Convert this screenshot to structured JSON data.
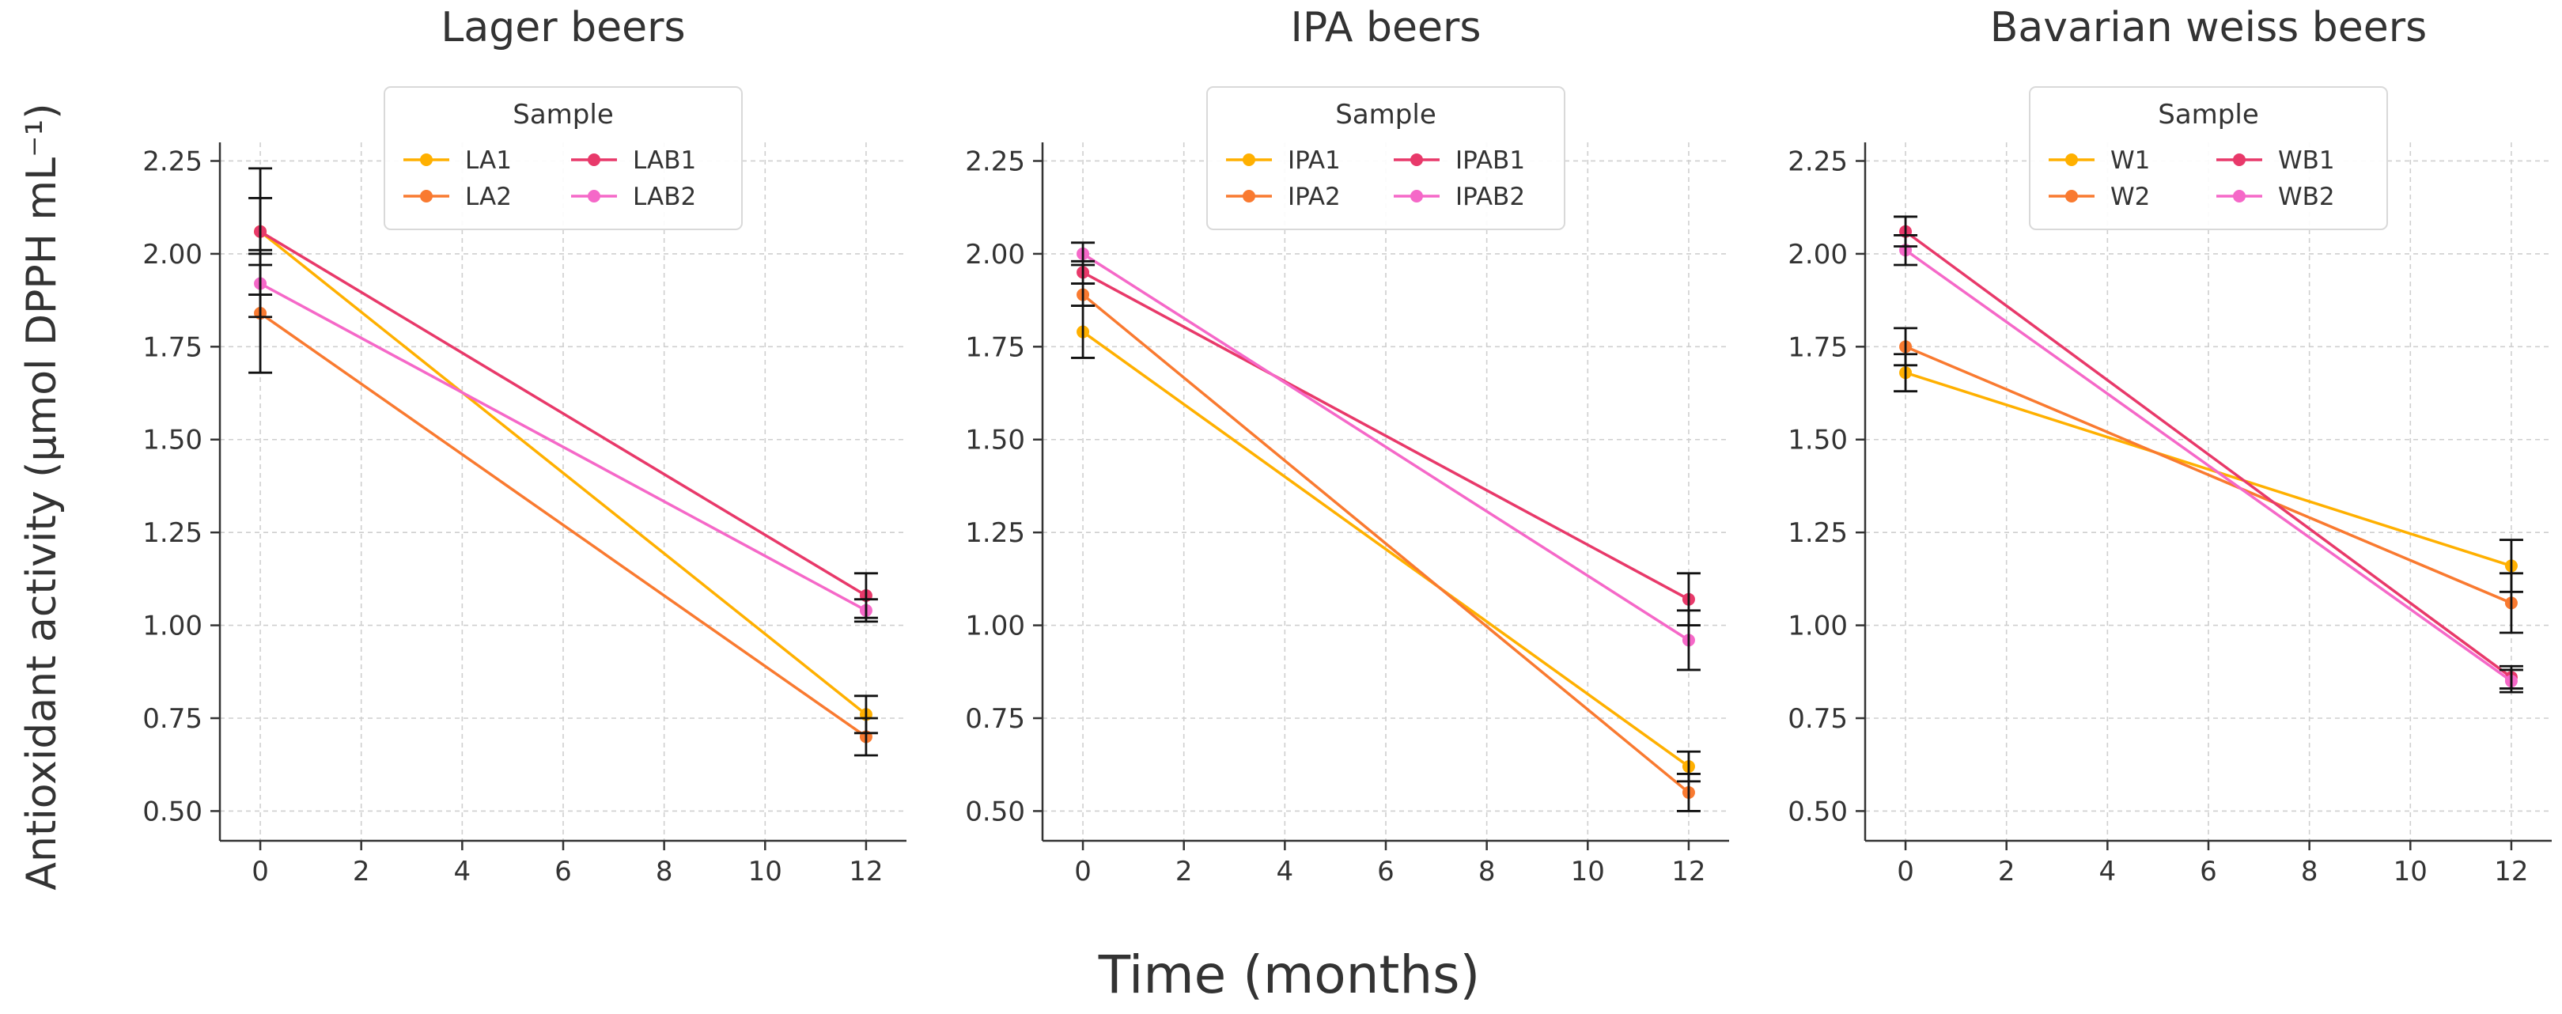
{
  "figure": {
    "ylabel": "Antioxidant activity (µmol DPPH mL⁻¹)",
    "xlabel": "Time (months)"
  },
  "colors": {
    "yellow": "#ffb000",
    "orange": "#f97a30",
    "crimson": "#e8396a",
    "pink": "#f568c8",
    "axis": "#333333",
    "grid": "#cfcfcf",
    "legend_border": "#d9d9d9",
    "errorbar": "#111111"
  },
  "chart_data": [
    {
      "type": "line",
      "title": "Lager beers",
      "legend_title": "Sample",
      "x": [
        0,
        12
      ],
      "xlim": [
        -0.8,
        12.8
      ],
      "ylim": [
        0.42,
        2.3
      ],
      "xticks": [
        "0",
        "2",
        "4",
        "6",
        "8",
        "10",
        "12"
      ],
      "yticks": [
        "0.50",
        "0.75",
        "1.00",
        "1.25",
        "1.50",
        "1.75",
        "2.00",
        "2.25"
      ],
      "grid": true,
      "series": [
        {
          "name": "LA1",
          "color": "yellow",
          "values": [
            2.06,
            0.76
          ],
          "errors": [
            0.09,
            0.05
          ]
        },
        {
          "name": "LA2",
          "color": "orange",
          "values": [
            1.84,
            0.7
          ],
          "errors": [
            0.16,
            0.05
          ]
        },
        {
          "name": "LAB1",
          "color": "crimson",
          "values": [
            2.06,
            1.08
          ],
          "errors": [
            0.17,
            0.06
          ]
        },
        {
          "name": "LAB2",
          "color": "pink",
          "values": [
            1.92,
            1.04
          ],
          "errors": [
            0.09,
            0.03
          ]
        }
      ]
    },
    {
      "type": "line",
      "title": "IPA beers",
      "legend_title": "Sample",
      "x": [
        0,
        12
      ],
      "xlim": [
        -0.8,
        12.8
      ],
      "ylim": [
        0.42,
        2.3
      ],
      "xticks": [
        "0",
        "2",
        "4",
        "6",
        "8",
        "10",
        "12"
      ],
      "yticks": [
        "0.50",
        "0.75",
        "1.00",
        "1.25",
        "1.50",
        "1.75",
        "2.00",
        "2.25"
      ],
      "grid": true,
      "series": [
        {
          "name": "IPA1",
          "color": "yellow",
          "values": [
            1.79,
            0.62
          ],
          "errors": [
            0.07,
            0.04
          ]
        },
        {
          "name": "IPA2",
          "color": "orange",
          "values": [
            1.89,
            0.55
          ],
          "errors": [
            0.03,
            0.05
          ]
        },
        {
          "name": "IPAB1",
          "color": "crimson",
          "values": [
            1.95,
            1.07
          ],
          "errors": [
            0.03,
            0.07
          ]
        },
        {
          "name": "IPAB2",
          "color": "pink",
          "values": [
            2.0,
            0.96
          ],
          "errors": [
            0.03,
            0.08
          ]
        }
      ]
    },
    {
      "type": "line",
      "title": "Bavarian weiss beers",
      "legend_title": "Sample",
      "x": [
        0,
        12
      ],
      "xlim": [
        -0.8,
        12.8
      ],
      "ylim": [
        0.42,
        2.3
      ],
      "xticks": [
        "0",
        "2",
        "4",
        "6",
        "8",
        "10",
        "12"
      ],
      "yticks": [
        "0.50",
        "0.75",
        "1.00",
        "1.25",
        "1.50",
        "1.75",
        "2.00",
        "2.25"
      ],
      "grid": true,
      "series": [
        {
          "name": "W1",
          "color": "yellow",
          "values": [
            1.68,
            1.16
          ],
          "errors": [
            0.05,
            0.07
          ]
        },
        {
          "name": "W2",
          "color": "orange",
          "values": [
            1.75,
            1.06
          ],
          "errors": [
            0.05,
            0.08
          ]
        },
        {
          "name": "WB1",
          "color": "crimson",
          "values": [
            2.06,
            0.86
          ],
          "errors": [
            0.04,
            0.03
          ]
        },
        {
          "name": "WB2",
          "color": "pink",
          "values": [
            2.01,
            0.85
          ],
          "errors": [
            0.04,
            0.03
          ]
        }
      ]
    }
  ]
}
